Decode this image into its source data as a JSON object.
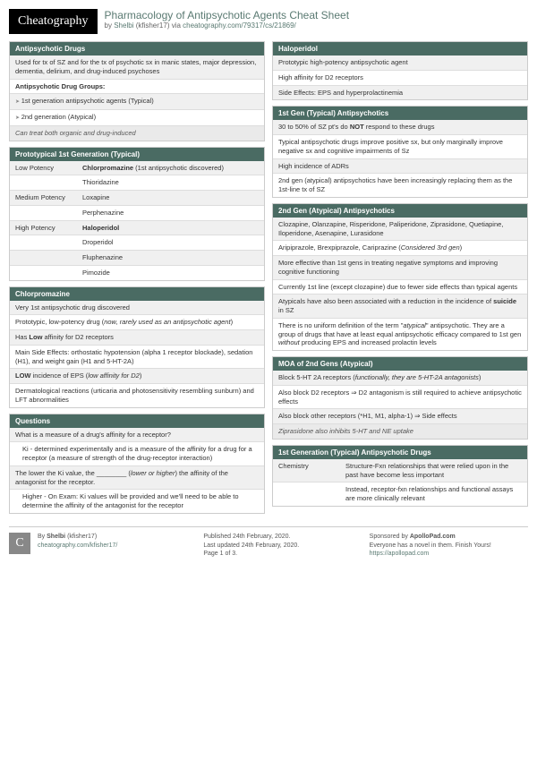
{
  "logo": "Cheatography",
  "title": "Pharmacology of Antipsychotic Agents Cheat Sheet",
  "byline_prefix": "by ",
  "author": "Shelbi",
  "author_handle": "(kfisher17)",
  "via": " via ",
  "url": "cheatography.com/79317/cs/21869/",
  "left": {
    "s1": {
      "h": "Antipsychotic Drugs",
      "r1": "Used for tx of SZ and for the tx of psychotic sx in manic states, major depression, dementia, delirium, and drug-induced psychoses",
      "r2": "Antipsychotic Drug Groups:",
      "r3": "1st generation antipsychotic agents (Typical)",
      "r4": "2nd generation (Atypical)",
      "r5": "Can treat both organic and drug-induced"
    },
    "s2": {
      "h": "Prototypical 1st Generation (Typical)",
      "r1a": "Low Potency",
      "r1b": "Chlorpromazine",
      "r1c": " (1st antipsychotic discovered)",
      "r2b": "Thioridazine",
      "r3a": "Medium Potency",
      "r3b": "Loxapine",
      "r4b": "Perphenazine",
      "r5a": "High Potency",
      "r5b": "Haloperidol",
      "r6b": "Droperidol",
      "r7b": "Fluphenazine",
      "r8b": "Pimozide"
    },
    "s3": {
      "h": "Chlorpromazine",
      "r1": "Very 1st antipsychotic drug discovered",
      "r2a": "Prototypic, low-potency drug (",
      "r2b": "now, rarely used as an antipsychotic agent",
      "r2c": ")",
      "r3a": "Has ",
      "r3b": "Low",
      "r3c": " affinity for D2 receptors",
      "r4": "Main Side Effects: orthostatic hypotension (alpha 1 receptor blockade), sedation (H1), and weight gain (H1 and 5-HT-2A)",
      "r5a": "LOW",
      "r5b": " incidence of EPS (",
      "r5c": "low affinity for D2",
      "r5d": ")",
      "r6": "Dermatological reactions (urticaria and photosensitivity resembling sunburn) and LFT abnormalities"
    },
    "s4": {
      "h": "Questions",
      "r1": "What is a measure of a drug's affinity for a receptor?",
      "r2": "Ki - determined experimentally and is a measure of the affinity for a drug for a receptor (a measure of strength of the drug-receptor interaction)",
      "r3a": "The lower the Ki value, the ________ (",
      "r3b": "lower or higher",
      "r3c": ") the affinity of the antagonist for the receptor.",
      "r4": "Higher - On Exam: Ki values will be provided and we'll need to be able to determine the affinity of the antagonist for the receptor"
    }
  },
  "right": {
    "s1": {
      "h": "Haloperidol",
      "r1": "Prototypic high-potency antipsychotic agent",
      "r2": "High affinity for D2 receptors",
      "r3": "Side Effects: EPS and hyperprolactinemia"
    },
    "s2": {
      "h": "1st Gen (Typical) Antipsychotics",
      "r1a": "30 to 50% of SZ pt's do ",
      "r1b": "NOT",
      "r1c": " respond to these drugs",
      "r2": "Typical antipsychotic drugs improve positive sx, but only marginally improve negative sx and cognitive impairments of Sz",
      "r3": "High incidence of ADRs",
      "r4": "2nd gen (atypical) antipsychotics have been increasingly replacing them as the 1st-line tx of SZ"
    },
    "s3": {
      "h": "2nd Gen (Atypical) Antipsychotics",
      "r1": "Clozapine, Olanzapine, Risperidone, Paliperidone, Ziprasidone, Quetiapine, Iloperidone, Asenapine, Lurasidone",
      "r2a": "Aripiprazole, Brexpiprazole, Cariprazine (",
      "r2b": "Considered 3rd gen",
      "r2c": ")",
      "r3": "More effective than 1st gens in treating negative symptoms and improving cognitive functioning",
      "r4": "Currently 1st line (except clozapine) due to fewer side effects than typical agents",
      "r5a": "Atypicals have also been associated with a reduction in the incidence of ",
      "r5b": "suicide",
      "r5c": " in SZ",
      "r6a": "There is no uniform definition of the term \"",
      "r6b": "atypical",
      "r6c": "\" antipsychotic. They are a group of drugs that have at least equal antipsychotic efficacy compared to 1st gen ",
      "r6d": "without",
      "r6e": " producing EPS and increased prolactin levels"
    },
    "s4": {
      "h": "MOA of 2nd Gens (Atypical)",
      "r1a": "Block 5-HT 2A receptors (",
      "r1b": "functionally, they are 5-HT-2A antagonists",
      "r1c": ")",
      "r2": "Also block D2 receptors ⇒ D2 antagonism is still required to achieve antipsychotic effects",
      "r3": "Also block other receptors (*H1, M1, alpha-1) ⇒ Side effects",
      "r4a": "Ziprasidone",
      "r4b": " also inhibits 5-HT and NE uptake"
    },
    "s5": {
      "h": "1st Generation (Typical) Antipsychotic Drugs",
      "r1a": "Chemistry",
      "r1b": "Structure-Fxn relationships that were relied upon in the past have become less important",
      "r2": "Instead, receptor-fxn relationships and functional assays are more clinically relevant"
    }
  },
  "footer": {
    "c1a": "By ",
    "c1b": "Shelbi",
    "c1c": " (kfisher17)",
    "c1d": "cheatography.com/kfisher17/",
    "c2a": "Published 24th February, 2020.",
    "c2b": "Last updated 24th February, 2020.",
    "c2c": "Page 1 of 3.",
    "c3a": "Sponsored by ",
    "c3b": "ApolloPad.com",
    "c3c": "Everyone has a novel in them. Finish Yours!",
    "c3d": "https://apollopad.com"
  }
}
